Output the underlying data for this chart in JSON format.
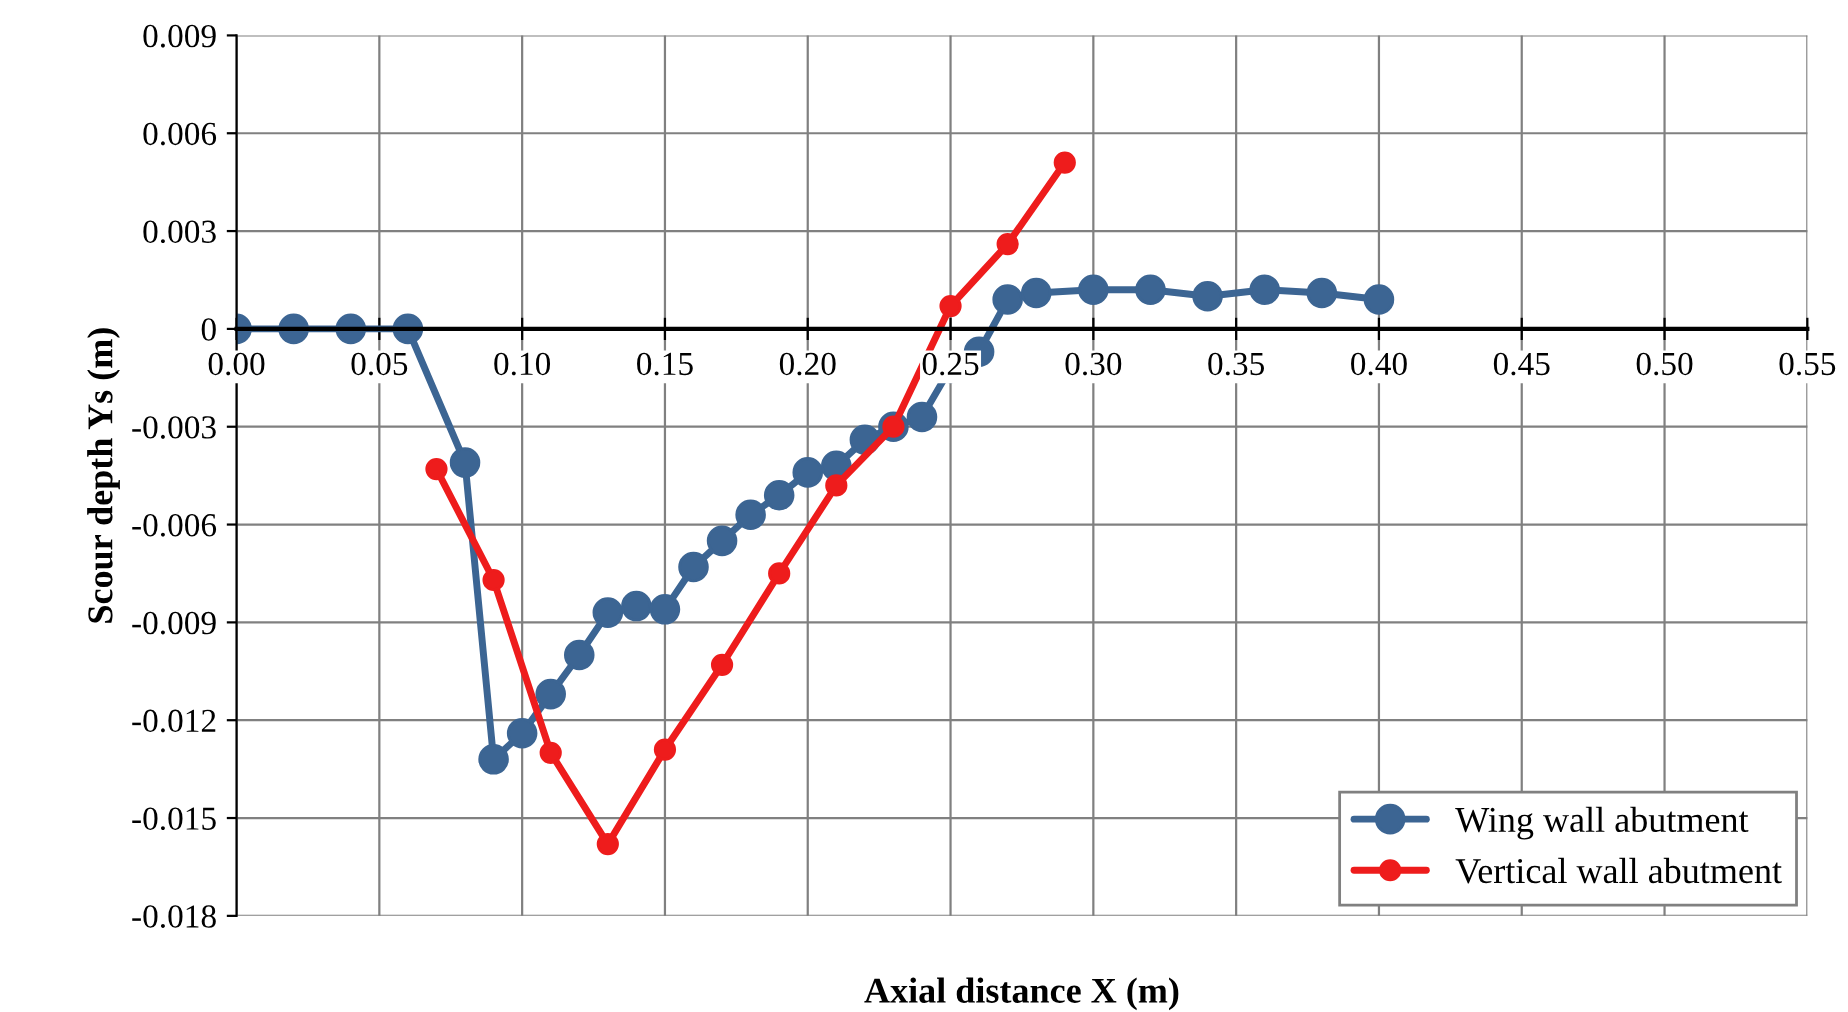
{
  "chart_data": {
    "type": "line",
    "xlabel": "Axial distance X (m)",
    "ylabel": "Scour depth Ys (m)",
    "xlim": [
      0,
      0.55
    ],
    "ylim": [
      -0.018,
      0.009
    ],
    "xticks": [
      {
        "value": 0,
        "label": "0.00"
      },
      0.05,
      {
        "value": 0.1,
        "label": "0.10"
      },
      0.15,
      {
        "value": 0.2,
        "label": "0.20"
      },
      0.25,
      {
        "value": 0.3,
        "label": "0.30"
      },
      0.35,
      {
        "value": 0.4,
        "label": "0.40"
      },
      0.45,
      {
        "value": 0.5,
        "label": "0.50"
      },
      0.55
    ],
    "yticks": [
      0.009,
      0.006,
      0.003,
      0,
      -0.003,
      -0.006,
      -0.009,
      -0.012,
      -0.015,
      -0.018
    ],
    "grid": true,
    "legend": "bottom right",
    "marker": "circle",
    "line_style": "solid",
    "series": [
      {
        "name": "Wing wall abutment",
        "color": "#3c6593",
        "x": [
          0,
          0.02,
          0.04,
          0.06,
          0.08,
          0.09,
          0.1,
          0.11,
          0.12,
          0.13,
          0.14,
          0.15,
          0.16,
          0.17,
          0.18,
          0.19,
          0.2,
          0.21,
          0.22,
          0.23,
          0.24,
          0.25,
          0.26,
          0.27,
          0.28,
          0.3,
          0.32,
          0.34,
          0.36,
          0.38,
          0.4
        ],
        "values": [
          0,
          0,
          0,
          0,
          -0.0041,
          -0.0132,
          -0.0124,
          -0.0112,
          -0.01,
          -0.0087,
          -0.0085,
          -0.0086,
          -0.0073,
          -0.0065,
          -0.0057,
          -0.0051,
          -0.0044,
          -0.0042,
          -0.0034,
          -0.003,
          -0.0027,
          -0.0012,
          -0.0007,
          0.0009,
          0.0011,
          0.0012,
          0.0012,
          0.001,
          0.0012,
          0.0011,
          0.0009
        ]
      },
      {
        "name": "Vertical wall abutment",
        "color": "#ee1c1c",
        "x": [
          0.07,
          0.09,
          0.11,
          0.13,
          0.15,
          0.17,
          0.19,
          0.21,
          0.23,
          0.25,
          0.27,
          0.29
        ],
        "values": [
          -0.0043,
          -0.0077,
          -0.013,
          -0.0158,
          -0.0129,
          -0.0103,
          -0.0075,
          -0.0048,
          -0.003,
          0.0007,
          0.0026,
          0.0051
        ]
      }
    ]
  }
}
